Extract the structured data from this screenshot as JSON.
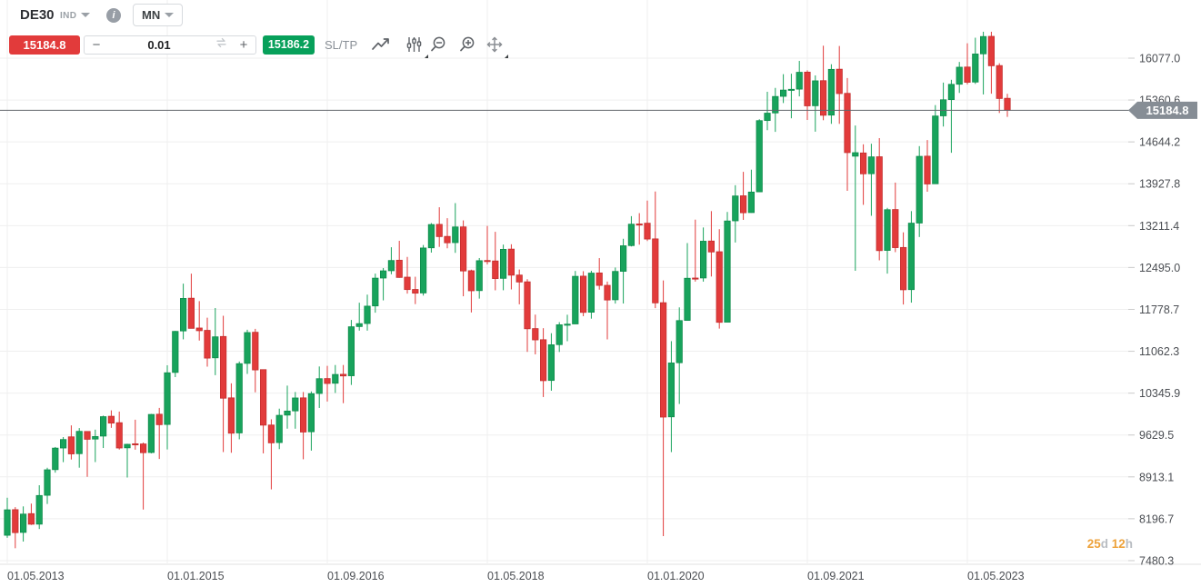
{
  "header": {
    "symbol": "DE30",
    "market": "IND",
    "timeframe": "MN"
  },
  "toolbar": {
    "sell_price": "15184.8",
    "buy_price": "15186.2",
    "volume": "0.01",
    "minus": "−",
    "plus": "+",
    "sltp": "SL/TP",
    "icons": [
      "trendline-icon",
      "indicators-icon",
      "zoom-out-icon",
      "zoom-in-icon",
      "pan-icon"
    ]
  },
  "countdown": {
    "days_value": "25",
    "days_unit": "d",
    "hours_value": "12",
    "hours_unit": "h"
  },
  "colors": {
    "candle_up": "#18a35c",
    "candle_up_border": "#0e8c4b",
    "candle_down": "#e23b3b",
    "candle_down_border": "#c42f2f",
    "sell_button": "#e23b3b",
    "buy_button": "#07a05a",
    "grid": "#efefef",
    "axis_text": "#4b4e53",
    "axis_separator": "#e2e2e2",
    "price_line": "#60646a",
    "badge_bg": "#868d95",
    "badge_text": "#ffffff",
    "countdown_value": "#eda23b",
    "countdown_unit": "#b9bdc2"
  },
  "chart_data": {
    "type": "candlestick",
    "symbol": "DE30",
    "timeframe": "MN",
    "start_month": "2013-05",
    "months_per_candle": 1,
    "current_price": 15184.8,
    "y_axis": {
      "tick_values": [
        16077.0,
        15360.6,
        14644.2,
        13927.8,
        13211.4,
        12495.0,
        11778.7,
        11062.3,
        10345.9,
        9629.5,
        8913.1,
        8196.7,
        7480.3
      ]
    },
    "x_axis": {
      "tick_labels": [
        "01.05.2013",
        "01.01.2015",
        "01.09.2016",
        "01.05.2018",
        "01.01.2020",
        "01.09.2021",
        "01.05.2023"
      ],
      "tick_candle_indices": [
        0,
        20,
        40,
        60,
        80,
        100,
        120
      ]
    },
    "ohlc": [
      [
        7914,
        8557,
        7871,
        8349
      ],
      [
        8352,
        8395,
        7692,
        7959
      ],
      [
        7963,
        8408,
        7806,
        8276
      ],
      [
        8284,
        8456,
        8090,
        8103
      ],
      [
        8104,
        8770,
        8021,
        8594
      ],
      [
        8598,
        9070,
        8450,
        9034
      ],
      [
        9037,
        9424,
        8985,
        9405
      ],
      [
        9407,
        9594,
        9165,
        9552
      ],
      [
        9598,
        9794,
        9210,
        9306
      ],
      [
        9310,
        9748,
        9070,
        9692
      ],
      [
        9690,
        9695,
        8913,
        9556
      ],
      [
        9560,
        9721,
        9166,
        9603
      ],
      [
        9611,
        9961,
        9407,
        9943
      ],
      [
        9950,
        10051,
        9752,
        9833
      ],
      [
        9840,
        10030,
        9380,
        9407
      ],
      [
        9410,
        9480,
        8903,
        9470
      ],
      [
        9479,
        9891,
        9378,
        9474
      ],
      [
        9476,
        9500,
        8354,
        9327
      ],
      [
        9330,
        9990,
        9315,
        9981
      ],
      [
        9985,
        10093,
        9219,
        9806
      ],
      [
        9810,
        10823,
        9382,
        10694
      ],
      [
        10700,
        11410,
        10620,
        11402
      ],
      [
        11410,
        12219,
        11266,
        11966
      ],
      [
        11970,
        12390,
        11619,
        11454
      ],
      [
        11460,
        11920,
        11245,
        11414
      ],
      [
        11420,
        11636,
        10798,
        10945
      ],
      [
        10950,
        11802,
        10653,
        11309
      ],
      [
        11315,
        11669,
        9338,
        10259
      ],
      [
        10265,
        10514,
        9325,
        9660
      ],
      [
        9665,
        10887,
        9556,
        10850
      ],
      [
        10855,
        11430,
        10674,
        11382
      ],
      [
        11387,
        11446,
        10360,
        10743
      ],
      [
        10748,
        10748,
        9315,
        9798
      ],
      [
        9800,
        9898,
        8699,
        9495
      ],
      [
        9500,
        10080,
        9388,
        9966
      ],
      [
        9970,
        10474,
        9737,
        10039
      ],
      [
        10042,
        10365,
        9737,
        10263
      ],
      [
        10265,
        10365,
        9214,
        9680
      ],
      [
        9685,
        10375,
        9362,
        10337
      ],
      [
        10340,
        10802,
        10092,
        10593
      ],
      [
        10595,
        10812,
        10203,
        10511
      ],
      [
        10515,
        10827,
        10349,
        10665
      ],
      [
        10668,
        10827,
        10174,
        10640
      ],
      [
        10643,
        11598,
        10486,
        11481
      ],
      [
        11485,
        11893,
        11415,
        11535
      ],
      [
        11537,
        12031,
        11415,
        11834
      ],
      [
        11838,
        12391,
        11722,
        12313
      ],
      [
        12315,
        12486,
        11933,
        12438
      ],
      [
        12440,
        12842,
        12380,
        12615
      ],
      [
        12620,
        12952,
        12319,
        12325
      ],
      [
        12330,
        12676,
        12048,
        12118
      ],
      [
        12120,
        12337,
        11869,
        12056
      ],
      [
        12060,
        12880,
        12015,
        12829
      ],
      [
        12832,
        13255,
        12750,
        13230
      ],
      [
        13233,
        13526,
        12848,
        13024
      ],
      [
        13027,
        13338,
        12823,
        12918
      ],
      [
        12921,
        13597,
        12746,
        13189
      ],
      [
        13190,
        13301,
        12003,
        12436
      ],
      [
        12440,
        12458,
        11726,
        12097
      ],
      [
        12100,
        12657,
        11963,
        12612
      ],
      [
        12615,
        13206,
        12548,
        12604
      ],
      [
        12607,
        13106,
        12105,
        12306
      ],
      [
        12310,
        12887,
        12106,
        12806
      ],
      [
        12810,
        12893,
        12120,
        12364
      ],
      [
        12366,
        12461,
        11865,
        12247
      ],
      [
        12250,
        12296,
        11051,
        11447
      ],
      [
        11450,
        11689,
        11009,
        11257
      ],
      [
        11260,
        11457,
        10279,
        10559
      ],
      [
        10563,
        11371,
        10387,
        11173
      ],
      [
        11176,
        11560,
        11050,
        11515
      ],
      [
        11518,
        11686,
        11235,
        11526
      ],
      [
        11530,
        12436,
        11527,
        12344
      ],
      [
        12347,
        12432,
        11662,
        11727
      ],
      [
        11730,
        12439,
        11620,
        12399
      ],
      [
        12402,
        12656,
        12116,
        12189
      ],
      [
        12190,
        12254,
        11266,
        11939
      ],
      [
        11943,
        12495,
        11878,
        12428
      ],
      [
        12430,
        12987,
        11879,
        12867
      ],
      [
        12870,
        13374,
        12855,
        13236
      ],
      [
        13240,
        13425,
        12886,
        13222
      ],
      [
        13253,
        13640,
        12948,
        12982
      ],
      [
        12985,
        13795,
        11800,
        11890
      ],
      [
        11893,
        12273,
        7900,
        9936
      ],
      [
        9940,
        11235,
        9337,
        10862
      ],
      [
        10866,
        11813,
        10160,
        11587
      ],
      [
        11590,
        12913,
        11587,
        12311
      ],
      [
        12315,
        13314,
        12254,
        12313
      ],
      [
        12316,
        13180,
        12253,
        12945
      ],
      [
        12948,
        13460,
        12341,
        12761
      ],
      [
        12765,
        13151,
        11450,
        11557
      ],
      [
        11560,
        13445,
        11560,
        13291
      ],
      [
        13294,
        13903,
        12923,
        13719
      ],
      [
        13722,
        14132,
        13310,
        13432
      ],
      [
        13435,
        14169,
        13432,
        13786
      ],
      [
        13790,
        15032,
        13790,
        15008
      ],
      [
        15010,
        15501,
        14845,
        15136
      ],
      [
        15140,
        15568,
        14816,
        15421
      ],
      [
        15424,
        15803,
        15309,
        15531
      ],
      [
        15534,
        15811,
        15048,
        15544
      ],
      [
        15547,
        16030,
        15423,
        15835
      ],
      [
        15838,
        15870,
        15019,
        15261
      ],
      [
        15263,
        15782,
        14819,
        15689
      ],
      [
        15692,
        16290,
        15015,
        15100
      ],
      [
        15103,
        15973,
        14953,
        15885
      ],
      [
        15888,
        16285,
        14953,
        15471
      ],
      [
        15475,
        15737,
        13807,
        14461
      ],
      [
        14400,
        14925,
        12439,
        14460
      ],
      [
        14455,
        14603,
        13567,
        14098
      ],
      [
        14100,
        14613,
        13380,
        14388
      ],
      [
        14390,
        14709,
        12618,
        12784
      ],
      [
        12788,
        13516,
        12390,
        13484
      ],
      [
        13487,
        13948,
        12758,
        12835
      ],
      [
        12838,
        13097,
        11862,
        12114
      ],
      [
        12117,
        13460,
        11894,
        13254
      ],
      [
        13256,
        14572,
        13017,
        14397
      ],
      [
        14400,
        14675,
        13791,
        13924
      ],
      [
        13928,
        15274,
        13928,
        15087
      ],
      [
        15090,
        15659,
        14907,
        15365
      ],
      [
        15368,
        15707,
        14458,
        15629
      ],
      [
        15631,
        16012,
        15482,
        15922
      ],
      [
        15925,
        16332,
        15629,
        15664
      ],
      [
        15668,
        16427,
        15636,
        16148
      ],
      [
        16151,
        16529,
        15456,
        16447
      ],
      [
        16450,
        16529,
        15469,
        15947
      ],
      [
        15950,
        15990,
        15139,
        15387
      ],
      [
        15390,
        15466,
        15073,
        15184.8
      ]
    ]
  }
}
